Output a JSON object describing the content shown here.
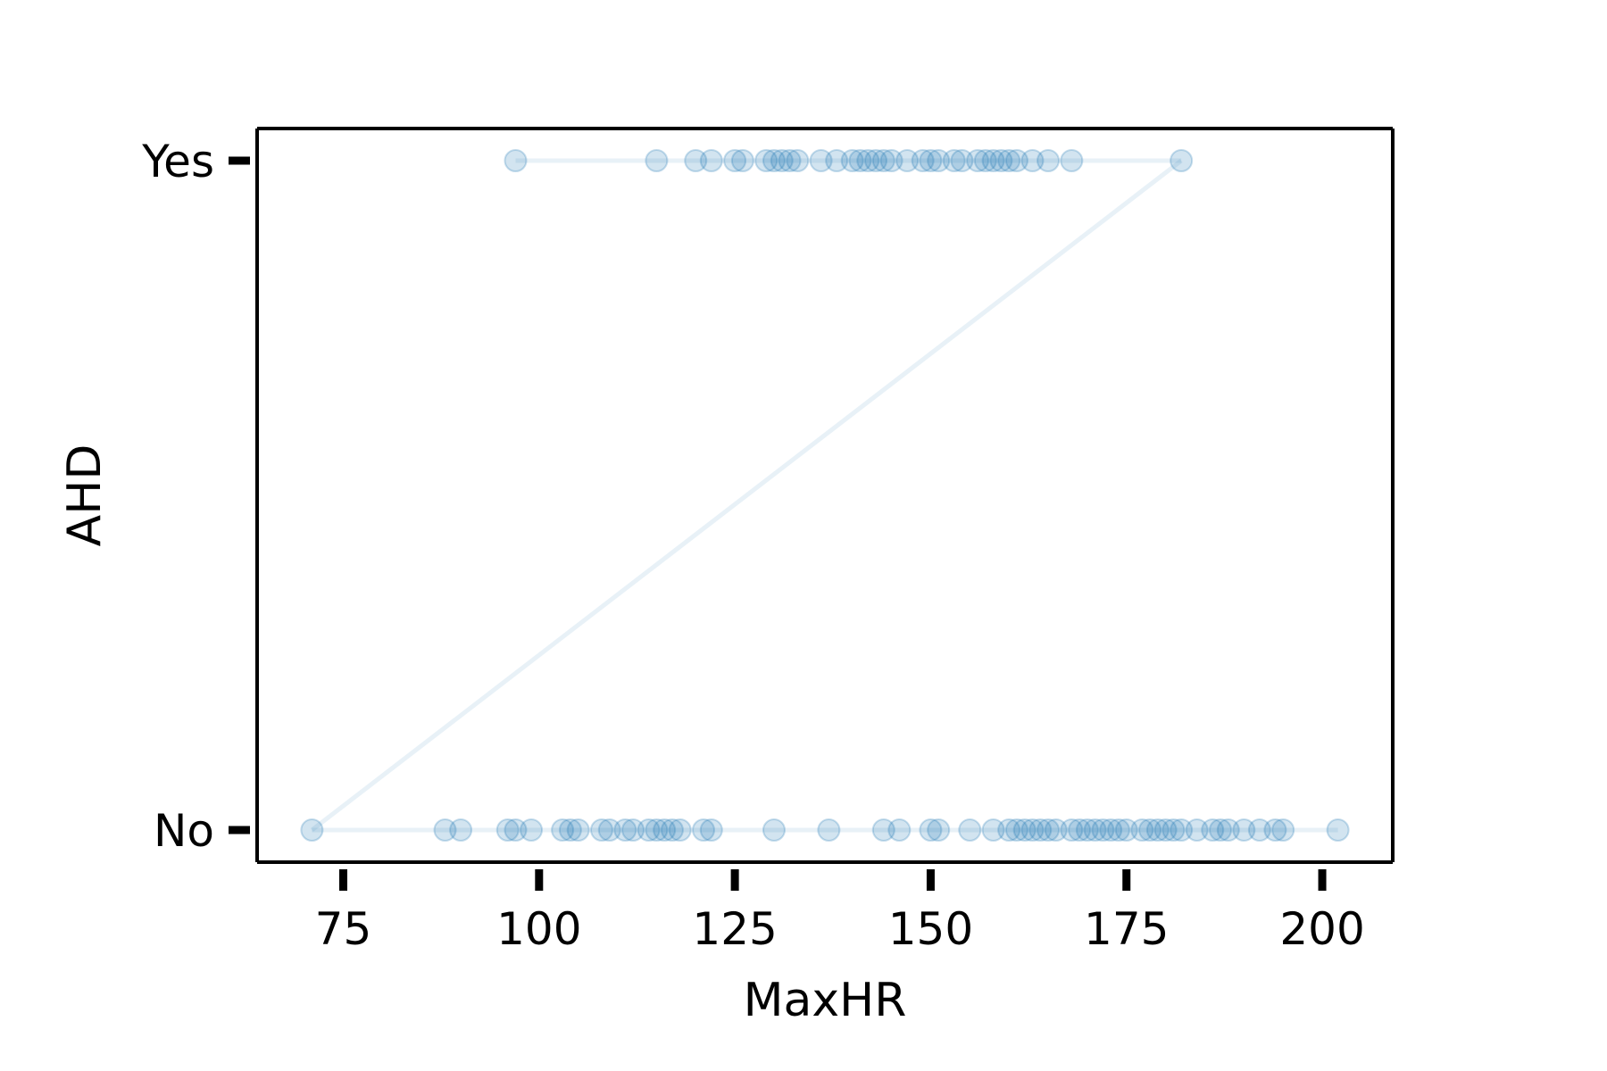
{
  "chart_data": {
    "type": "line",
    "xlabel": "MaxHR",
    "ylabel": "AHD",
    "xlim": [
      64,
      209
    ],
    "xticks": [
      75,
      100,
      125,
      150,
      175,
      200
    ],
    "yticks": [
      "No",
      "Yes"
    ],
    "grid": false,
    "legend": "none",
    "series": [
      {
        "values_x": [
          97,
          115,
          120,
          122,
          125,
          126,
          129,
          130,
          131,
          132,
          133,
          136,
          138,
          140,
          141,
          142,
          143,
          144,
          145,
          147,
          149,
          150,
          151,
          153,
          154,
          156,
          157,
          158,
          159,
          160,
          161,
          163,
          165,
          168,
          182,
          71,
          88,
          90,
          96,
          97,
          99,
          103,
          104,
          105,
          108,
          109,
          111,
          112,
          114,
          115,
          116,
          117,
          118,
          121,
          122,
          130,
          137,
          144,
          146,
          150,
          151,
          155,
          158,
          160,
          161,
          162,
          163,
          164,
          165,
          166,
          168,
          169,
          170,
          171,
          172,
          173,
          174,
          175,
          177,
          178,
          179,
          180,
          181,
          182,
          184,
          186,
          187,
          188,
          190,
          192,
          194,
          195,
          202
        ],
        "values_y": [
          "Yes",
          "Yes",
          "Yes",
          "Yes",
          "Yes",
          "Yes",
          "Yes",
          "Yes",
          "Yes",
          "Yes",
          "Yes",
          "Yes",
          "Yes",
          "Yes",
          "Yes",
          "Yes",
          "Yes",
          "Yes",
          "Yes",
          "Yes",
          "Yes",
          "Yes",
          "Yes",
          "Yes",
          "Yes",
          "Yes",
          "Yes",
          "Yes",
          "Yes",
          "Yes",
          "Yes",
          "Yes",
          "Yes",
          "Yes",
          "Yes",
          "No",
          "No",
          "No",
          "No",
          "No",
          "No",
          "No",
          "No",
          "No",
          "No",
          "No",
          "No",
          "No",
          "No",
          "No",
          "No",
          "No",
          "No",
          "No",
          "No",
          "No",
          "No",
          "No",
          "No",
          "No",
          "No",
          "No",
          "No",
          "No",
          "No",
          "No",
          "No",
          "No",
          "No",
          "No",
          "No",
          "No",
          "No",
          "No",
          "No",
          "No",
          "No",
          "No",
          "No",
          "No",
          "No",
          "No",
          "No",
          "No",
          "No",
          "No",
          "No",
          "No",
          "No",
          "No",
          "No",
          "No",
          "No"
        ]
      }
    ],
    "colors": {
      "series": "#1f77b4",
      "axes": "#000000"
    }
  }
}
